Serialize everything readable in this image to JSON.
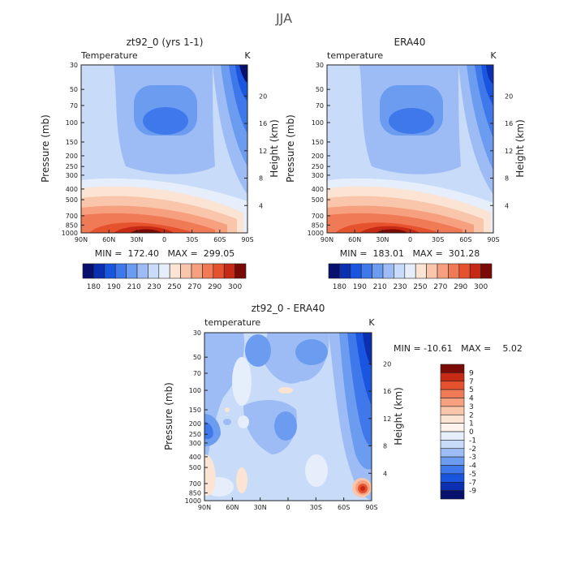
{
  "figure_title": "JJA",
  "chart_data": [
    {
      "type": "contour",
      "title": "zt92_0 (yrs 1-1)",
      "subtitle_left": "Temperature",
      "subtitle_right": "K",
      "ylabel": "Pressure (mb)",
      "ylabel_right": "Height (km)",
      "x_ticks": [
        "90N",
        "60N",
        "30N",
        "0",
        "30S",
        "60S",
        "90S"
      ],
      "y_ticks": [
        "30",
        "50",
        "70",
        "100",
        "150",
        "200",
        "250",
        "300",
        "400",
        "500",
        "700",
        "850",
        "1000"
      ],
      "height_ticks": [
        "20",
        "16",
        "12",
        "8",
        "4"
      ],
      "stats": "MIN =  172.40   MAX =  299.05",
      "min": 172.4,
      "max": 299.05,
      "colorbar": {
        "orientation": "horizontal",
        "labels": [
          "180",
          "190",
          "210",
          "230",
          "250",
          "270",
          "290",
          "300"
        ],
        "colors": [
          "#08106e",
          "#0a2fb0",
          "#1a55e0",
          "#3f78ea",
          "#6c9cf0",
          "#9dbcf5",
          "#c8dbf8",
          "#e5eefa",
          "#fbe4d4",
          "#f9c6ac",
          "#f6a080",
          "#f07a56",
          "#e6512e",
          "#c72a14",
          "#7a0a06"
        ]
      }
    },
    {
      "type": "contour",
      "title": "ERA40",
      "subtitle_left": "temperature",
      "subtitle_right": "K",
      "ylabel": "Pressure (mb)",
      "ylabel_right": "Height (km)",
      "x_ticks": [
        "90N",
        "60N",
        "30N",
        "0",
        "30S",
        "60S",
        "90S"
      ],
      "y_ticks": [
        "30",
        "50",
        "70",
        "100",
        "150",
        "200",
        "250",
        "300",
        "400",
        "500",
        "700",
        "850",
        "1000"
      ],
      "height_ticks": [
        "20",
        "16",
        "12",
        "8",
        "4"
      ],
      "stats": "MIN =  183.01   MAX =  301.28",
      "min": 183.01,
      "max": 301.28,
      "colorbar": {
        "orientation": "horizontal",
        "labels": [
          "180",
          "190",
          "210",
          "230",
          "250",
          "270",
          "290",
          "300"
        ],
        "colors": [
          "#08106e",
          "#0a2fb0",
          "#1a55e0",
          "#3f78ea",
          "#6c9cf0",
          "#9dbcf5",
          "#c8dbf8",
          "#e5eefa",
          "#fbe4d4",
          "#f9c6ac",
          "#f6a080",
          "#f07a56",
          "#e6512e",
          "#c72a14",
          "#7a0a06"
        ]
      }
    },
    {
      "type": "contour",
      "title": "zt92_0 - ERA40",
      "subtitle_left": "temperature",
      "subtitle_right": "K",
      "ylabel": "Pressure (mb)",
      "ylabel_right": "Height (km)",
      "x_ticks": [
        "90N",
        "60N",
        "30N",
        "0",
        "30S",
        "60S",
        "90S"
      ],
      "y_ticks": [
        "30",
        "50",
        "70",
        "100",
        "150",
        "200",
        "250",
        "300",
        "400",
        "500",
        "700",
        "850",
        "1000"
      ],
      "height_ticks": [
        "20",
        "16",
        "12",
        "8",
        "4"
      ],
      "stats": "MIN = -10.61   MAX =    5.02",
      "min": -10.61,
      "max": 5.02,
      "colorbar": {
        "orientation": "vertical",
        "labels": [
          "9",
          "7",
          "5",
          "4",
          "3",
          "2",
          "1",
          "0",
          "-1",
          "-2",
          "-3",
          "-4",
          "-5",
          "-7",
          "-9"
        ],
        "colors": [
          "#7a0a06",
          "#c72a14",
          "#e6512e",
          "#f07a56",
          "#f6a080",
          "#f9c6ac",
          "#fbe4d4",
          "#fdf3ec",
          "#e5eefa",
          "#c8dbf8",
          "#9dbcf5",
          "#6c9cf0",
          "#3f78ea",
          "#1a55e0",
          "#0a2fb0",
          "#08106e"
        ]
      }
    }
  ]
}
